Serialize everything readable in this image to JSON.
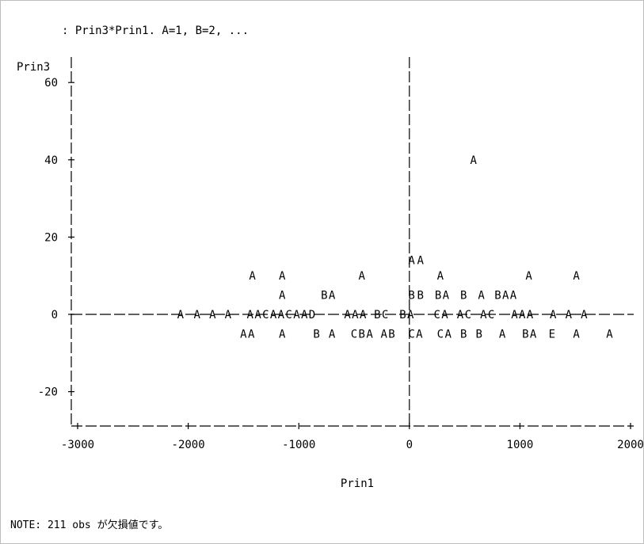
{
  "chart_data": {
    "type": "scatter",
    "title": ": Prin3*Prin1. A=1, B=2, ...",
    "xlabel": "Prin1",
    "ylabel": "Prin3",
    "xlim": [
      -3000,
      2000
    ],
    "ylim": [
      -29,
      70
    ],
    "x_ticks": [
      -3000,
      -2000,
      -1000,
      0,
      1000,
      2000
    ],
    "y_ticks": [
      -20,
      0,
      20,
      40,
      60
    ],
    "reference_lines": {
      "x": 0,
      "y": 0
    },
    "points": [
      {
        "x": 580,
        "y": 40,
        "label": "A"
      },
      {
        "x": 20,
        "y": 14,
        "label": "A"
      },
      {
        "x": 100,
        "y": 14,
        "label": "A"
      },
      {
        "x": -1420,
        "y": 10,
        "label": "A"
      },
      {
        "x": -1150,
        "y": 10,
        "label": "A"
      },
      {
        "x": -430,
        "y": 10,
        "label": "A"
      },
      {
        "x": 280,
        "y": 10,
        "label": "A"
      },
      {
        "x": 1080,
        "y": 10,
        "label": "A"
      },
      {
        "x": 1510,
        "y": 10,
        "label": "A"
      },
      {
        "x": -1150,
        "y": 5,
        "label": "A"
      },
      {
        "x": -770,
        "y": 5,
        "label": "B"
      },
      {
        "x": -700,
        "y": 5,
        "label": "A"
      },
      {
        "x": 20,
        "y": 5,
        "label": "B"
      },
      {
        "x": 100,
        "y": 5,
        "label": "B"
      },
      {
        "x": 260,
        "y": 5,
        "label": "B"
      },
      {
        "x": 330,
        "y": 5,
        "label": "A"
      },
      {
        "x": 490,
        "y": 5,
        "label": "B"
      },
      {
        "x": 650,
        "y": 5,
        "label": "A"
      },
      {
        "x": 800,
        "y": 5,
        "label": "B"
      },
      {
        "x": 870,
        "y": 5,
        "label": "A"
      },
      {
        "x": 940,
        "y": 5,
        "label": "A"
      },
      {
        "x": -2070,
        "y": 0,
        "label": "A"
      },
      {
        "x": -1920,
        "y": 0,
        "label": "A"
      },
      {
        "x": -1780,
        "y": 0,
        "label": "A"
      },
      {
        "x": -1640,
        "y": 0,
        "label": "A"
      },
      {
        "x": -1440,
        "y": 0,
        "label": "A"
      },
      {
        "x": -1370,
        "y": 0,
        "label": "A"
      },
      {
        "x": -1300,
        "y": 0,
        "label": "C"
      },
      {
        "x": -1230,
        "y": 0,
        "label": "A"
      },
      {
        "x": -1160,
        "y": 0,
        "label": "A"
      },
      {
        "x": -1090,
        "y": 0,
        "label": "C"
      },
      {
        "x": -1020,
        "y": 0,
        "label": "A"
      },
      {
        "x": -950,
        "y": 0,
        "label": "A"
      },
      {
        "x": -880,
        "y": 0,
        "label": "D"
      },
      {
        "x": -560,
        "y": 0,
        "label": "A"
      },
      {
        "x": -490,
        "y": 0,
        "label": "A"
      },
      {
        "x": -420,
        "y": 0,
        "label": "A"
      },
      {
        "x": -290,
        "y": 0,
        "label": "B"
      },
      {
        "x": -220,
        "y": 0,
        "label": "C"
      },
      {
        "x": -60,
        "y": 0,
        "label": "B"
      },
      {
        "x": 10,
        "y": 0,
        "label": "A"
      },
      {
        "x": 250,
        "y": 0,
        "label": "C"
      },
      {
        "x": 320,
        "y": 0,
        "label": "A"
      },
      {
        "x": 460,
        "y": 0,
        "label": "A"
      },
      {
        "x": 530,
        "y": 0,
        "label": "C"
      },
      {
        "x": 670,
        "y": 0,
        "label": "A"
      },
      {
        "x": 740,
        "y": 0,
        "label": "C"
      },
      {
        "x": 950,
        "y": 0,
        "label": "A"
      },
      {
        "x": 1020,
        "y": 0,
        "label": "A"
      },
      {
        "x": 1090,
        "y": 0,
        "label": "A"
      },
      {
        "x": 1300,
        "y": 0,
        "label": "A"
      },
      {
        "x": 1440,
        "y": 0,
        "label": "A"
      },
      {
        "x": 1580,
        "y": 0,
        "label": "A"
      },
      {
        "x": -1500,
        "y": -5,
        "label": "A"
      },
      {
        "x": -1430,
        "y": -5,
        "label": "A"
      },
      {
        "x": -1150,
        "y": -5,
        "label": "A"
      },
      {
        "x": -840,
        "y": -5,
        "label": "B"
      },
      {
        "x": -700,
        "y": -5,
        "label": "A"
      },
      {
        "x": -500,
        "y": -5,
        "label": "C"
      },
      {
        "x": -430,
        "y": -5,
        "label": "B"
      },
      {
        "x": -360,
        "y": -5,
        "label": "A"
      },
      {
        "x": -230,
        "y": -5,
        "label": "A"
      },
      {
        "x": -160,
        "y": -5,
        "label": "B"
      },
      {
        "x": 20,
        "y": -5,
        "label": "C"
      },
      {
        "x": 90,
        "y": -5,
        "label": "A"
      },
      {
        "x": 280,
        "y": -5,
        "label": "C"
      },
      {
        "x": 350,
        "y": -5,
        "label": "A"
      },
      {
        "x": 490,
        "y": -5,
        "label": "B"
      },
      {
        "x": 630,
        "y": -5,
        "label": "B"
      },
      {
        "x": 840,
        "y": -5,
        "label": "A"
      },
      {
        "x": 1050,
        "y": -5,
        "label": "B"
      },
      {
        "x": 1120,
        "y": -5,
        "label": "A"
      },
      {
        "x": 1290,
        "y": -5,
        "label": "E"
      },
      {
        "x": 1510,
        "y": -5,
        "label": "A"
      },
      {
        "x": 1810,
        "y": -5,
        "label": "A"
      }
    ]
  },
  "note": "NOTE: 211 obs が欠損値です。"
}
